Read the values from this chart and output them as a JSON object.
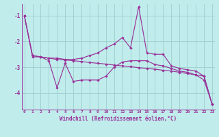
{
  "xlabel": "Windchill (Refroidissement éolien,°C)",
  "bg_color": "#c0ecec",
  "grid_color": "#9ecece",
  "line_color": "#993399",
  "x": [
    0,
    1,
    2,
    3,
    4,
    5,
    6,
    7,
    8,
    9,
    10,
    11,
    12,
    13,
    14,
    15,
    16,
    17,
    18,
    19,
    20,
    21,
    22,
    23
  ],
  "line1": [
    -1.0,
    -2.6,
    -2.6,
    -2.65,
    -2.65,
    -2.7,
    -2.7,
    -2.65,
    -2.55,
    -2.45,
    -2.25,
    -2.1,
    -1.85,
    -2.25,
    -0.65,
    -2.45,
    -2.5,
    -2.5,
    -2.95,
    -3.05,
    -3.1,
    -3.15,
    -3.35,
    -4.45
  ],
  "line2": [
    -1.0,
    -2.55,
    -2.6,
    -2.65,
    -2.7,
    -2.72,
    -2.75,
    -2.78,
    -2.82,
    -2.85,
    -2.88,
    -2.92,
    -2.95,
    -2.98,
    -3.02,
    -3.05,
    -3.08,
    -3.12,
    -3.15,
    -3.2,
    -3.25,
    -3.3,
    -3.35,
    -4.45
  ],
  "line3": [
    -1.0,
    -2.55,
    -2.6,
    -2.75,
    -3.8,
    -2.85,
    -3.55,
    -3.5,
    -3.5,
    -3.5,
    -3.35,
    -3.0,
    -2.8,
    -2.75,
    -2.75,
    -2.75,
    -2.9,
    -2.95,
    -3.05,
    -3.15,
    -3.2,
    -3.3,
    -3.5,
    -4.45
  ],
  "ylim": [
    -4.65,
    -0.55
  ],
  "xlim": [
    -0.3,
    23.3
  ],
  "yticks": [
    -4,
    -3,
    -2,
    -1
  ],
  "xticks": [
    0,
    1,
    2,
    3,
    4,
    5,
    6,
    7,
    8,
    9,
    10,
    11,
    12,
    13,
    14,
    15,
    16,
    17,
    18,
    19,
    20,
    21,
    22,
    23
  ]
}
